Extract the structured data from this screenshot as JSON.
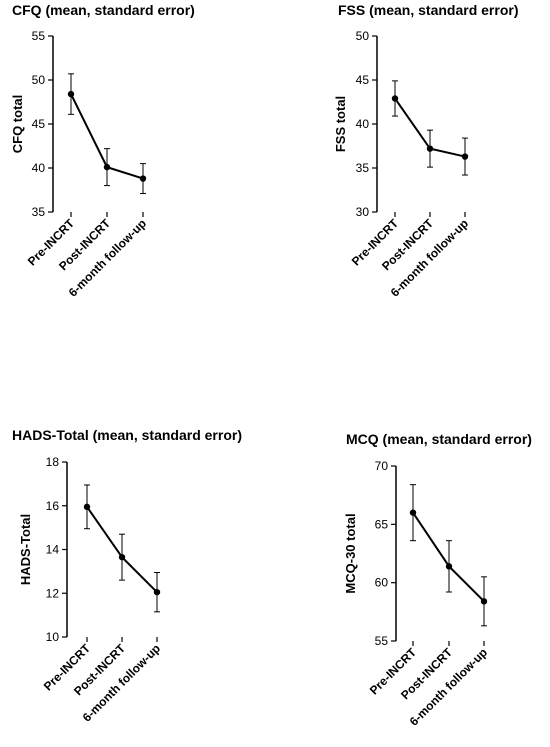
{
  "chart_data": [
    {
      "type": "line",
      "title": "CFQ (mean, standard error)",
      "xlabel": "",
      "ylabel": "CFQ total",
      "categories": [
        "Pre-INCRT",
        "Post-INCRT",
        "6-month follow-up"
      ],
      "values": [
        48.4,
        40.1,
        38.8
      ],
      "errors": [
        2.3,
        2.1,
        1.7
      ],
      "ylim": [
        35,
        55
      ],
      "yticks": [
        "35",
        "40",
        "45",
        "50",
        "55"
      ],
      "grid": false,
      "legend": "none"
    },
    {
      "type": "line",
      "title": "FSS (mean, standard error)",
      "xlabel": "",
      "ylabel": "FSS total",
      "categories": [
        "Pre-INCRT",
        "Post-INCRT",
        "6-month follow-up"
      ],
      "values": [
        42.9,
        37.2,
        36.3
      ],
      "errors": [
        2.0,
        2.1,
        2.1
      ],
      "ylim": [
        30,
        50
      ],
      "yticks": [
        "30",
        "35",
        "40",
        "45",
        "50"
      ],
      "grid": false,
      "legend": "none"
    },
    {
      "type": "line",
      "title": "HADS-Total (mean, standard error)",
      "xlabel": "",
      "ylabel": "HADS-Total",
      "categories": [
        "Pre-INCRT",
        "Post-INCRT",
        "6-month follow-up"
      ],
      "values": [
        15.95,
        13.65,
        12.05
      ],
      "errors": [
        1.0,
        1.05,
        0.9
      ],
      "ylim": [
        10,
        18
      ],
      "yticks": [
        "10",
        "12",
        "14",
        "16",
        "18"
      ],
      "grid": false,
      "legend": "none"
    },
    {
      "type": "line",
      "title": "MCQ (mean, standard error)",
      "xlabel": "",
      "ylabel": "MCQ-30 total",
      "categories": [
        "Pre-INCRT",
        "Post-INCRT",
        "6-month follow-up"
      ],
      "values": [
        66.0,
        61.4,
        58.4
      ],
      "errors": [
        2.4,
        2.2,
        2.1
      ],
      "ylim": [
        55,
        70
      ],
      "yticks": [
        "55",
        "60",
        "65",
        "70"
      ],
      "grid": false,
      "legend": "none"
    }
  ]
}
